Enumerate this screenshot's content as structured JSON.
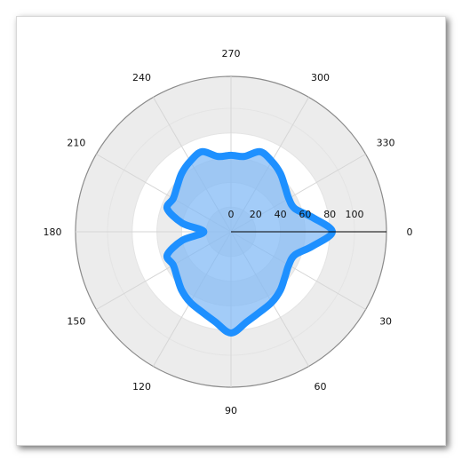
{
  "chart_data": {
    "type": "area",
    "coordinate_system": "polar",
    "title": "",
    "angle_direction": "clockwise",
    "angle_zero": "right",
    "angle_ticks": [
      "0",
      "30",
      "60",
      "90",
      "120",
      "150",
      "180",
      "210",
      "240",
      "270",
      "300",
      "330"
    ],
    "radial_ticks": [
      "0",
      "20",
      "40",
      "60",
      "80",
      "100"
    ],
    "rlim": [
      0,
      100
    ],
    "grid": true,
    "series": [
      {
        "name": "",
        "fill_color": "#7fb9f5",
        "line_color": "#1e90ff",
        "points": [
          {
            "angle": 0,
            "r": 82
          },
          {
            "angle": 10,
            "r": 67
          },
          {
            "angle": 20,
            "r": 55
          },
          {
            "angle": 30,
            "r": 54
          },
          {
            "angle": 40,
            "r": 57
          },
          {
            "angle": 50,
            "r": 62
          },
          {
            "angle": 60,
            "r": 66
          },
          {
            "angle": 70,
            "r": 69
          },
          {
            "angle": 80,
            "r": 74
          },
          {
            "angle": 90,
            "r": 82
          },
          {
            "angle": 100,
            "r": 74
          },
          {
            "angle": 110,
            "r": 69
          },
          {
            "angle": 120,
            "r": 66
          },
          {
            "angle": 130,
            "r": 62
          },
          {
            "angle": 140,
            "r": 57
          },
          {
            "angle": 150,
            "r": 54
          },
          {
            "angle": 160,
            "r": 55
          },
          {
            "angle": 170,
            "r": 40
          },
          {
            "angle": 180,
            "r": 22
          },
          {
            "angle": 190,
            "r": 40
          },
          {
            "angle": 200,
            "r": 55
          },
          {
            "angle": 210,
            "r": 54
          },
          {
            "angle": 220,
            "r": 57
          },
          {
            "angle": 230,
            "r": 62
          },
          {
            "angle": 240,
            "r": 66
          },
          {
            "angle": 250,
            "r": 69
          },
          {
            "angle": 260,
            "r": 62
          },
          {
            "angle": 270,
            "r": 62
          },
          {
            "angle": 280,
            "r": 62
          },
          {
            "angle": 290,
            "r": 69
          },
          {
            "angle": 300,
            "r": 66
          },
          {
            "angle": 310,
            "r": 62
          },
          {
            "angle": 320,
            "r": 57
          },
          {
            "angle": 330,
            "r": 54
          },
          {
            "angle": 340,
            "r": 55
          },
          {
            "angle": 350,
            "r": 67
          }
        ]
      }
    ]
  }
}
